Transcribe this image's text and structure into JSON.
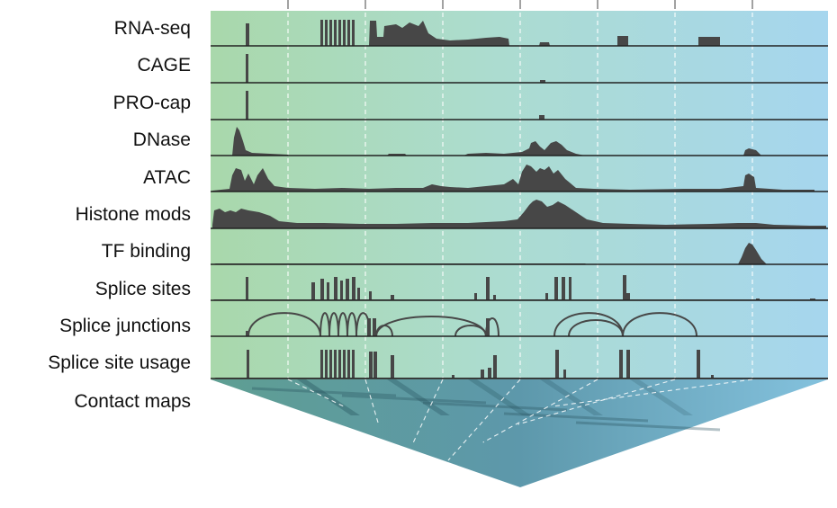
{
  "tracks": [
    {
      "label": "RNA-seq",
      "kind": "bars"
    },
    {
      "label": "CAGE",
      "kind": "bars"
    },
    {
      "label": "PRO-cap",
      "kind": "bars"
    },
    {
      "label": "DNase",
      "kind": "area"
    },
    {
      "label": "ATAC",
      "kind": "area"
    },
    {
      "label": "Histone mods",
      "kind": "area"
    },
    {
      "label": "TF binding",
      "kind": "area"
    },
    {
      "label": "Splice sites",
      "kind": "bars"
    },
    {
      "label": "Splice junctions",
      "kind": "arcs"
    },
    {
      "label": "Splice site usage",
      "kind": "bars"
    }
  ],
  "contact_map": {
    "label": "Contact maps"
  },
  "colors": {
    "background_left": "#a8d8a8",
    "background_right": "#a8d6ec",
    "signal": "#474747",
    "contact_map_left": "#5f9d9a",
    "contact_map_right": "#7cb9d8"
  }
}
